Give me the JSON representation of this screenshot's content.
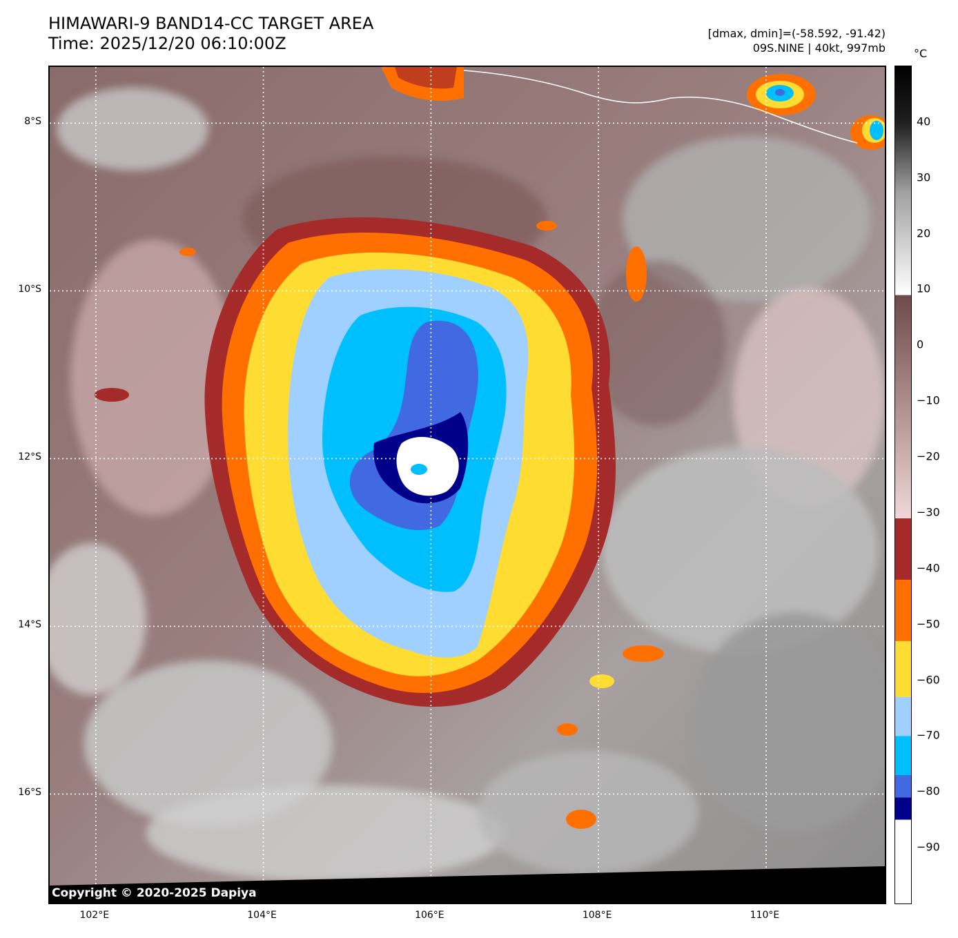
{
  "header": {
    "title_line1": "HIMAWARI-9 BAND14-CC TARGET AREA",
    "title_line2": "Time: 2025/12/20 06:10:00Z",
    "stats": "[dmax, dmin]=(-58.592, -91.42)",
    "storm": "09S.NINE | 40kt, 997mb"
  },
  "copyright": "Copyright © 2020-2025 Dapiya",
  "map": {
    "lat_labels": [
      "8°S",
      "10°S",
      "12°S",
      "14°S",
      "16°S"
    ],
    "lat_values": [
      -8,
      -10,
      -12,
      -14,
      -16
    ],
    "lon_labels": [
      "102°E",
      "104°E",
      "106°E",
      "108°E",
      "110°E"
    ],
    "lon_values": [
      102,
      104,
      106,
      108,
      110
    ],
    "lon_range": [
      101.45,
      111.45
    ],
    "lat_range": [
      -7.33,
      -17.33
    ],
    "storm_center": {
      "lon": 105.9,
      "lat": -12.15
    }
  },
  "colorbar": {
    "unit": "°C",
    "ticks": [
      "40",
      "30",
      "20",
      "10",
      "0",
      "−10",
      "−20",
      "−30",
      "−40",
      "−50",
      "−60",
      "−70",
      "−80",
      "−90"
    ],
    "tick_values": [
      40,
      30,
      20,
      10,
      0,
      -10,
      -20,
      -30,
      -40,
      -50,
      -60,
      -70,
      -80,
      -90
    ],
    "range": [
      -100,
      50
    ],
    "colors": {
      "red": "#a52a2a",
      "orange": "#ff7000",
      "yellow": "#ffdc32",
      "lightblue": "#a0d0ff",
      "skyblue": "#00bfff",
      "royalblue": "#4169e1",
      "darkblue": "#00008b",
      "white": "#ffffff",
      "warm_brown": "#6e4a4a",
      "cold_pink": "#f0d8d8"
    }
  }
}
